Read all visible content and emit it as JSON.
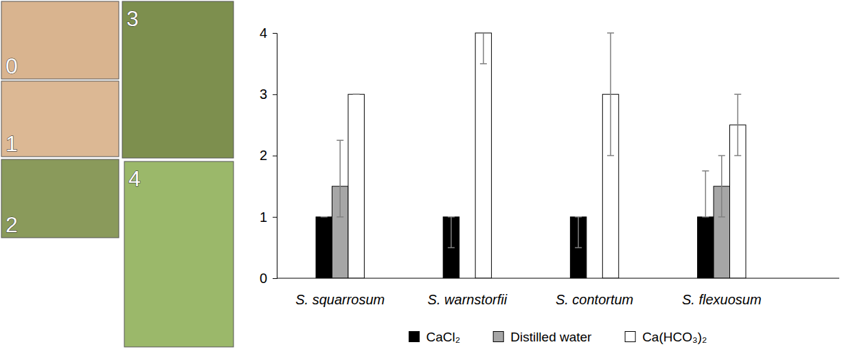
{
  "photo_panels": [
    "0",
    "1",
    "2",
    "3",
    "4"
  ],
  "chart_data": {
    "type": "bar",
    "categories": [
      "S. squarrosum",
      "S. warnstorfii",
      "S. contortum",
      "S. flexuosum"
    ],
    "series": [
      {
        "name": "CaCl₂",
        "color": "#000000",
        "values": [
          1,
          1,
          1,
          1
        ],
        "error_minus": [
          0,
          0.5,
          0.5,
          0
        ],
        "error_plus": [
          0,
          0,
          0,
          0.75
        ]
      },
      {
        "name": "Distilled water",
        "color": "#a6a6a6",
        "values": [
          1.5,
          null,
          null,
          1.5
        ],
        "error_minus": [
          0.5,
          null,
          null,
          0.5
        ],
        "error_plus": [
          0.75,
          null,
          null,
          0.5
        ]
      },
      {
        "name": "Ca(HCO₃)₂",
        "color": "#ffffff",
        "values": [
          3,
          4,
          3,
          2.5
        ],
        "error_minus": [
          0,
          0.5,
          1,
          0.5
        ],
        "error_plus": [
          0,
          0,
          1,
          0.5
        ]
      }
    ],
    "ylim": [
      0,
      4
    ],
    "yticks": [
      0,
      1,
      2,
      3,
      4
    ],
    "grid": false,
    "legend": "bottom"
  }
}
